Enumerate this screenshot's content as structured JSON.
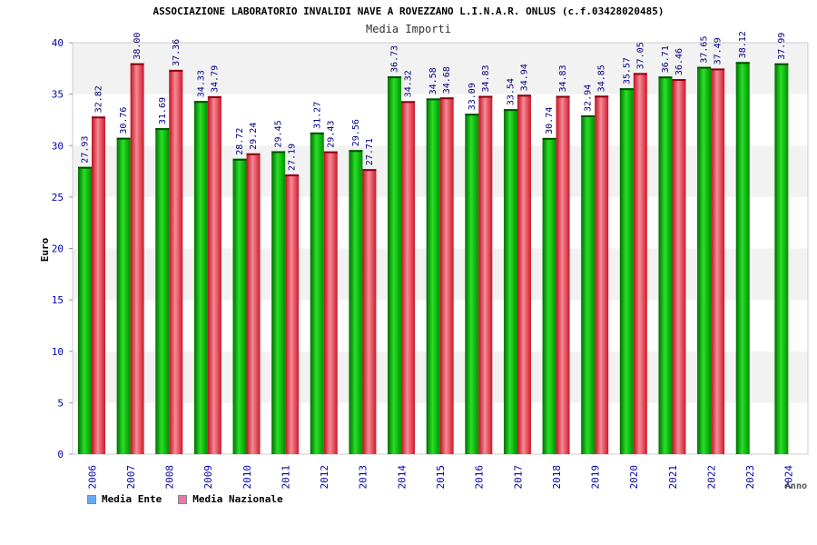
{
  "title": "ASSOCIAZIONE LABORATORIO INVALIDI NAVE A ROVEZZANO L.I.N.A.R. ONLUS (c.f.03428020485)",
  "subtitle": "Media Importi",
  "chart_data": {
    "type": "bar",
    "xlabel": "Anno",
    "ylabel": "Euro",
    "ylim": [
      0,
      40
    ],
    "yticks": [
      0,
      5,
      10,
      15,
      20,
      25,
      30,
      35,
      40
    ],
    "grid": "horizontal bands",
    "legend_position": "bottom-left",
    "categories": [
      "2006",
      "2007",
      "2008",
      "2009",
      "2010",
      "2011",
      "2012",
      "2013",
      "2014",
      "2015",
      "2016",
      "2017",
      "2018",
      "2019",
      "2020",
      "2021",
      "2022",
      "2023",
      "2024"
    ],
    "series": [
      {
        "name": "Media Ente",
        "color": "#00b000",
        "legend_color": "#66aaee",
        "values": [
          27.93,
          30.76,
          31.69,
          34.33,
          28.72,
          29.45,
          31.27,
          29.56,
          36.73,
          34.58,
          33.09,
          33.54,
          30.74,
          32.94,
          35.57,
          36.71,
          37.65,
          38.12,
          37.99
        ],
        "labels": [
          "27.93",
          "30.76",
          "31.69",
          "34.33",
          "28.72",
          "29.45",
          "31.27",
          "29.56",
          "36.73",
          "34.58",
          "33.09",
          "33.54",
          "30.74",
          "32.94",
          "35.57",
          "36.71",
          "37.65",
          "38.12",
          "37.99"
        ]
      },
      {
        "name": "Media Nazionale",
        "color": "#e8283c",
        "legend_color": "#e87aa8",
        "values": [
          32.82,
          38.0,
          37.36,
          34.79,
          29.24,
          27.19,
          29.43,
          27.71,
          34.32,
          34.68,
          34.83,
          34.94,
          34.83,
          34.85,
          37.05,
          36.46,
          37.49,
          null,
          null
        ],
        "labels": [
          "32.82",
          "38.00",
          "37.36",
          "34.79",
          "29.24",
          "27.19",
          "29.43",
          "27.71",
          "34.32",
          "34.68",
          "34.83",
          "34.94",
          "34.83",
          "34.85",
          "37.05",
          "36.46",
          "37.49",
          null,
          null
        ]
      }
    ]
  }
}
